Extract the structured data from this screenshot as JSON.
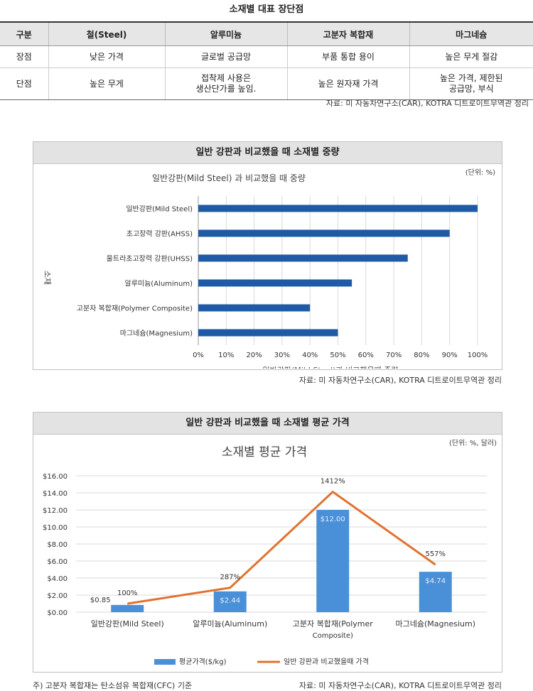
{
  "table": {
    "title": "소재별 대표 장단점",
    "headers": [
      "구분",
      "철(Steel)",
      "알루미늄",
      "고분자 복합재",
      "마그네슘"
    ],
    "rows": [
      {
        "label": "장점",
        "cells": [
          "낮은 가격",
          "글로벌 공급망",
          "부품 통합 용이",
          "높은 무게 절감"
        ]
      },
      {
        "label": "단점",
        "cells": [
          "높은 무게",
          "접착제 사용은\n생산단가를 높임.",
          "높은 원자재 가격",
          "높은 가격, 제한된\n공급망, 부식"
        ]
      }
    ],
    "source": "자료: 미 자동차연구소(CAR), KOTRA 디트로이트무역관 정리"
  },
  "chart1": {
    "box_title": "일반 강판과 비교했을 때 소재별 중량",
    "source": "자료: 미 자동차연구소(CAR), KOTRA 디트로이트무역관 정리"
  },
  "chart2": {
    "box_title": "일반 강판과 비교했을 때 소재별 평균 가격",
    "source": "자료: 미 자동차연구소(CAR), KOTRA 디트로이트무역관 정리",
    "note": "주) 고분자 복합재는 탄소섬유 복합재(CFC) 기준"
  },
  "colors": {
    "bar_dark_blue": "#1f5aa6",
    "bar_light_blue": "#4a90d9",
    "line_orange": "#e0722f"
  },
  "chart_data": [
    {
      "type": "bar",
      "orientation": "horizontal",
      "title": "일반강판(Mild Steel) 과 비교했을 때 중량",
      "unit_note": "(단위: %)",
      "xlabel": "일반강판(Mild Steel)과 비교했을때 중량",
      "ylabel": "소재",
      "categories": [
        "일반강판(Mild Steel)",
        "초고장력 강판(AHSS)",
        "울트라초고장력 강판(UHSS)",
        "알루미늄(Aluminum)",
        "고분자 복합재(Polymer Composite)",
        "마그네슘(Magnesium)"
      ],
      "values": [
        100,
        90,
        75,
        55,
        40,
        50
      ],
      "xlim": [
        0,
        100
      ],
      "tick_labels": [
        "0%",
        "10%",
        "20%",
        "30%",
        "40%",
        "50%",
        "60%",
        "70%",
        "80%",
        "90%",
        "100%"
      ],
      "grid": true
    },
    {
      "type": "bar",
      "title": "소재별 평균 가격",
      "unit_note": "(단위: %, 달러)",
      "categories": [
        "일반강판(Mild Steel)",
        "알루미늄(Aluminum)",
        "고분자 복합재(Polymer Composite)",
        "마그네슘(Magnesium)"
      ],
      "series": [
        {
          "name": "평균가격($/kg)",
          "kind": "bar",
          "values": [
            0.85,
            2.44,
            12.0,
            4.74
          ],
          "labels": [
            "$0.85",
            "$2.44",
            "$12.00",
            "$4.74"
          ]
        },
        {
          "name": "일반 강판과 비교했을때 가격",
          "kind": "line",
          "values": [
            100,
            287,
            1412,
            557
          ],
          "labels": [
            "100%",
            "287%",
            "1412%",
            "557%"
          ]
        }
      ],
      "ylim": [
        0,
        16
      ],
      "tick_labels": [
        "$0.00",
        "$2.00",
        "$4.00",
        "$6.00",
        "$8.00",
        "$10.00",
        "$12.00",
        "$14.00",
        "$16.00"
      ],
      "grid": true,
      "legend": "bottom"
    }
  ]
}
